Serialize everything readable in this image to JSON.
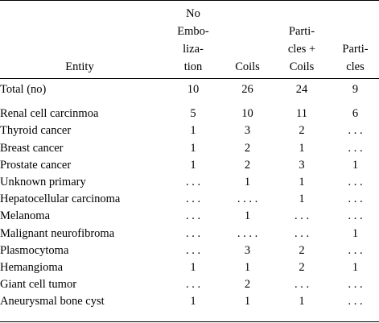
{
  "headers": {
    "entity": [
      "Entity"
    ],
    "no_embolization": [
      "No",
      "Embo-",
      "liza-",
      "tion"
    ],
    "coils": [
      "Coils"
    ],
    "particles_coils": [
      "Parti-",
      "cles +",
      "Coils"
    ],
    "particles": [
      "Parti-",
      "cles"
    ]
  },
  "rows": [
    {
      "name": "Total (no)",
      "v": [
        "10",
        "26",
        "24",
        "9"
      ]
    },
    {
      "name": "Renal cell carcinmoa",
      "v": [
        "5",
        "10",
        "11",
        "6"
      ]
    },
    {
      "name": "Thyroid cancer",
      "v": [
        "1",
        "3",
        "2",
        ". . ."
      ]
    },
    {
      "name": "Breast cancer",
      "v": [
        "1",
        "2",
        "1",
        ". . ."
      ]
    },
    {
      "name": "Prostate cancer",
      "v": [
        "1",
        "2",
        "3",
        "1"
      ]
    },
    {
      "name": "Unknown primary",
      "v": [
        ". . .",
        "1",
        "1",
        ". . ."
      ]
    },
    {
      "name": "Hepatocellular carcinoma",
      "v": [
        ". . .",
        ". . . .",
        "1",
        ". . ."
      ]
    },
    {
      "name": "Melanoma",
      "v": [
        ". . .",
        "1",
        ". . .",
        ". . ."
      ]
    },
    {
      "name": "Malignant neurofibroma",
      "v": [
        ". . .",
        ". . . .",
        ". . .",
        "1"
      ]
    },
    {
      "name": "Plasmocytoma",
      "v": [
        ". . .",
        "3",
        "2",
        ". . ."
      ]
    },
    {
      "name": "Hemangioma",
      "v": [
        "1",
        "1",
        "2",
        "1"
      ]
    },
    {
      "name": "Giant cell tumor",
      "v": [
        ". . .",
        "2",
        ". . .",
        ". . ."
      ]
    },
    {
      "name": "Aneurysmal bone cyst",
      "v": [
        "1",
        "1",
        "1",
        ". . ."
      ]
    }
  ]
}
